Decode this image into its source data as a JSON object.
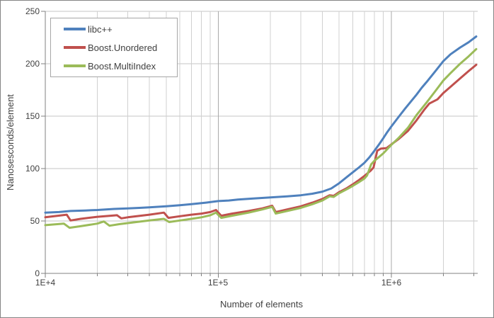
{
  "chart_data": {
    "type": "line",
    "title": "",
    "xlabel": "Number of elements",
    "ylabel": "Nanosesconds/element",
    "x_scale": "log",
    "xlim": [
      10000,
      3162278
    ],
    "ylim": [
      0,
      250
    ],
    "x_tick_labels": [
      "1E+4",
      "1E+5",
      "1E+6"
    ],
    "x_tick_values": [
      10000,
      100000,
      1000000
    ],
    "y_tick_labels": [
      "0",
      "50",
      "100",
      "150",
      "200",
      "250"
    ],
    "y_tick_values": [
      0,
      50,
      100,
      150,
      200,
      250
    ],
    "grid": true,
    "legend_position": "top-left",
    "series": [
      {
        "name": "libc++",
        "color": "#4F81BD",
        "points": [
          [
            10000,
            58
          ],
          [
            12000,
            58.5
          ],
          [
            14000,
            59.5
          ],
          [
            17000,
            60
          ],
          [
            20000,
            60.5
          ],
          [
            25000,
            61.5
          ],
          [
            30000,
            62
          ],
          [
            35000,
            62.5
          ],
          [
            40000,
            63
          ],
          [
            50000,
            64
          ],
          [
            60000,
            65
          ],
          [
            70000,
            66
          ],
          [
            85000,
            67.5
          ],
          [
            100000,
            69
          ],
          [
            115000,
            69.5
          ],
          [
            130000,
            70.5
          ],
          [
            160000,
            71.5
          ],
          [
            200000,
            72.5
          ],
          [
            250000,
            73.5
          ],
          [
            300000,
            74.5
          ],
          [
            350000,
            76
          ],
          [
            400000,
            78
          ],
          [
            450000,
            81
          ],
          [
            500000,
            86
          ],
          [
            550000,
            91.5
          ],
          [
            600000,
            96.5
          ],
          [
            650000,
            101
          ],
          [
            700000,
            105.5
          ],
          [
            750000,
            111
          ],
          [
            800000,
            117
          ],
          [
            850000,
            123
          ],
          [
            900000,
            129
          ],
          [
            950000,
            135
          ],
          [
            1000000,
            140
          ],
          [
            1100000,
            149
          ],
          [
            1200000,
            157
          ],
          [
            1300000,
            164
          ],
          [
            1400000,
            170.5
          ],
          [
            1500000,
            177
          ],
          [
            1600000,
            182.5
          ],
          [
            1800000,
            193
          ],
          [
            2000000,
            202.5
          ],
          [
            2200000,
            209
          ],
          [
            2500000,
            215.5
          ],
          [
            2800000,
            220.5
          ],
          [
            3100000,
            226
          ]
        ]
      },
      {
        "name": "Boost.Unordered",
        "color": "#C0504D",
        "points": [
          [
            10000,
            53.5
          ],
          [
            13300,
            56
          ],
          [
            14000,
            50.5
          ],
          [
            16000,
            52
          ],
          [
            20000,
            54
          ],
          [
            26000,
            55.5
          ],
          [
            27500,
            52.5
          ],
          [
            30000,
            53.5
          ],
          [
            40000,
            56
          ],
          [
            48500,
            58
          ],
          [
            51500,
            53
          ],
          [
            60000,
            54.5
          ],
          [
            70000,
            56
          ],
          [
            80000,
            57
          ],
          [
            90000,
            58.5
          ],
          [
            97000,
            60.5
          ],
          [
            104000,
            55
          ],
          [
            120000,
            57
          ],
          [
            150000,
            59.5
          ],
          [
            180000,
            62
          ],
          [
            205000,
            64.5
          ],
          [
            215000,
            58.5
          ],
          [
            250000,
            61
          ],
          [
            300000,
            64
          ],
          [
            350000,
            67.5
          ],
          [
            400000,
            71
          ],
          [
            440000,
            74.5
          ],
          [
            465000,
            74
          ],
          [
            500000,
            77.5
          ],
          [
            550000,
            81
          ],
          [
            600000,
            85
          ],
          [
            650000,
            89
          ],
          [
            700000,
            93
          ],
          [
            760000,
            98
          ],
          [
            790000,
            101
          ],
          [
            830000,
            117
          ],
          [
            870000,
            119
          ],
          [
            940000,
            119.5
          ],
          [
            1000000,
            123
          ],
          [
            1100000,
            128
          ],
          [
            1250000,
            136
          ],
          [
            1400000,
            146
          ],
          [
            1550000,
            156
          ],
          [
            1660000,
            162
          ],
          [
            1850000,
            166
          ],
          [
            2000000,
            172
          ],
          [
            2200000,
            178
          ],
          [
            2500000,
            186
          ],
          [
            2800000,
            193
          ],
          [
            3100000,
            199
          ]
        ]
      },
      {
        "name": "Boost.MultiIndex",
        "color": "#9BBB59",
        "points": [
          [
            10000,
            46
          ],
          [
            12800,
            47.5
          ],
          [
            13800,
            43.5
          ],
          [
            16000,
            45
          ],
          [
            20000,
            47.5
          ],
          [
            21800,
            49.5
          ],
          [
            23500,
            45.5
          ],
          [
            27000,
            47
          ],
          [
            30000,
            48
          ],
          [
            40000,
            50.5
          ],
          [
            48500,
            52
          ],
          [
            52000,
            49
          ],
          [
            60000,
            50.5
          ],
          [
            70000,
            52
          ],
          [
            80000,
            53.5
          ],
          [
            90000,
            55.5
          ],
          [
            97000,
            58
          ],
          [
            104000,
            53
          ],
          [
            120000,
            55
          ],
          [
            150000,
            58
          ],
          [
            180000,
            61
          ],
          [
            205000,
            63.5
          ],
          [
            215000,
            57
          ],
          [
            250000,
            59.5
          ],
          [
            300000,
            62.5
          ],
          [
            350000,
            66
          ],
          [
            400000,
            69.5
          ],
          [
            440000,
            73.5
          ],
          [
            465000,
            73
          ],
          [
            500000,
            76.5
          ],
          [
            550000,
            80
          ],
          [
            600000,
            83.5
          ],
          [
            650000,
            87
          ],
          [
            700000,
            90.5
          ],
          [
            725000,
            93.5
          ],
          [
            765000,
            104
          ],
          [
            800000,
            107.5
          ],
          [
            850000,
            111
          ],
          [
            900000,
            114.5
          ],
          [
            1000000,
            122.5
          ],
          [
            1100000,
            129
          ],
          [
            1250000,
            139
          ],
          [
            1400000,
            151
          ],
          [
            1600000,
            163
          ],
          [
            1800000,
            174
          ],
          [
            2000000,
            184
          ],
          [
            2200000,
            191
          ],
          [
            2500000,
            200
          ],
          [
            2800000,
            207
          ],
          [
            3100000,
            214
          ]
        ]
      }
    ]
  },
  "colors": {
    "background": "#FFFFFF",
    "frame_border": "#848484",
    "axis_line": "#808080",
    "grid_minor": "#D0D0D0",
    "grid_major": "#A9A9A9",
    "grid_horizontal": "#C6C6C6",
    "tick_mark": "#808080",
    "text": "#404040",
    "legend_border": "#A6A6A6",
    "legend_background": "#FFFFFF"
  }
}
